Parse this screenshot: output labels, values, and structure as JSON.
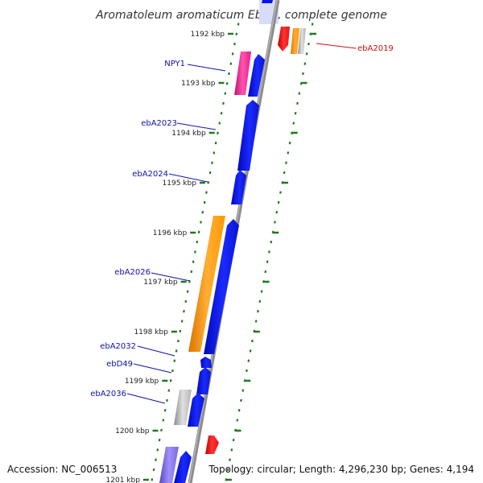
{
  "title": "Aromatoleum aromaticum EbN1, complete genome",
  "accession": "Accession: NC_006513",
  "topology": "Topology: circular; Length: 4,296,230 bp; Genes: 4,194",
  "colors": {
    "backbone": "#8c8c8c",
    "tick": "#1f7a1f",
    "gene_blue": "#0a14e6",
    "gene_orange": "#ff9900",
    "gene_magenta": "#e6198c",
    "gene_red": "#e61414",
    "gene_grey": "#b4b4b4",
    "gene_purple": "#7a6ad4",
    "label_blue": "#1111aa",
    "label_red": "#cc1111"
  },
  "kbp_ticks": [
    "1192 kbp",
    "1193 kbp",
    "1194 kbp",
    "1195 kbp",
    "1196 kbp",
    "1197 kbp",
    "1198 kbp",
    "1199 kbp",
    "1200 kbp",
    "1201 kbp"
  ],
  "gene_labels": [
    {
      "text": "ebA2019",
      "color": "red"
    },
    {
      "text": "NPY1",
      "color": "blue"
    },
    {
      "text": "ebA2023",
      "color": "blue"
    },
    {
      "text": "ebA2024",
      "color": "blue"
    },
    {
      "text": "ebA2026",
      "color": "blue"
    },
    {
      "text": "ebA2032",
      "color": "blue"
    },
    {
      "text": "ebD49",
      "color": "blue"
    },
    {
      "text": "ebA2036",
      "color": "blue"
    }
  ]
}
